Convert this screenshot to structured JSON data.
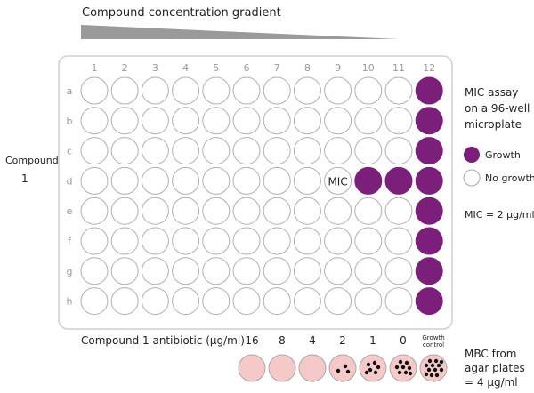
{
  "title": "Compound concentration gradient",
  "compound_label": "Compound",
  "compound_number": "1",
  "columns": [
    "1",
    "2",
    "3",
    "4",
    "5",
    "6",
    "7",
    "8",
    "9",
    "10",
    "11",
    "12"
  ],
  "rows": [
    "a",
    "b",
    "c",
    "d",
    "e",
    "f",
    "g",
    "h"
  ],
  "growth_wells": [
    [
      "a",
      "12"
    ],
    [
      "b",
      "12"
    ],
    [
      "c",
      "12"
    ],
    [
      "d",
      "10"
    ],
    [
      "d",
      "11"
    ],
    [
      "d",
      "12"
    ],
    [
      "e",
      "12"
    ],
    [
      "f",
      "12"
    ],
    [
      "g",
      "12"
    ],
    [
      "h",
      "12"
    ]
  ],
  "mic_well": {
    "row": "d",
    "col": "9",
    "label": "MIC"
  },
  "side_title": [
    "MIC assay",
    "on a 96-well",
    "microplate"
  ],
  "legend": {
    "growth": "Growth",
    "no_growth": "No growth"
  },
  "mic_value": "MIC = 2 µg/ml",
  "antibiotic_label": "Compound 1 antibiotic (µg/ml)",
  "concentrations": [
    "16",
    "8",
    "4",
    "2",
    "1",
    "0"
  ],
  "growth_control": [
    "Growth",
    "control"
  ],
  "agar_colonies": [
    0,
    0,
    0,
    3,
    6,
    8,
    12
  ],
  "mbc_text": [
    "MBC from",
    "agar plates",
    "= 4 µg/ml"
  ],
  "colors": {
    "growth": "#7b1f7a",
    "plate_border": "#cfcfcf",
    "dish": "#f6c9c9",
    "dish_border": "#a8a8a8",
    "gradient": "#9a9a9a"
  }
}
